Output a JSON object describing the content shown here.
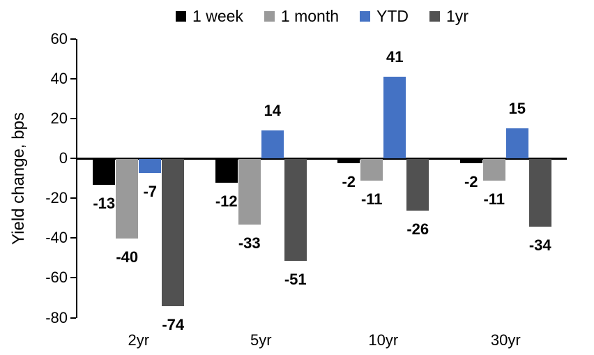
{
  "chart_data": {
    "type": "bar",
    "title": "",
    "xlabel": "",
    "ylabel": "Yield change, bps",
    "categories": [
      "2yr",
      "5yr",
      "10yr",
      "30yr"
    ],
    "series": [
      {
        "name": "1 week",
        "color": "#000000",
        "values": [
          -13,
          -12,
          -2,
          -2
        ]
      },
      {
        "name": "1 month",
        "color": "#9A9A9A",
        "values": [
          -40,
          -33,
          -11,
          -11
        ]
      },
      {
        "name": "YTD",
        "color": "#4472C4",
        "values": [
          -7,
          14,
          41,
          15
        ]
      },
      {
        "name": "1yr",
        "color": "#515151",
        "values": [
          -74,
          -51,
          -26,
          -34
        ]
      }
    ],
    "ylim": [
      -80,
      60
    ],
    "ytick_step": 20,
    "grid": false,
    "legend_position": "top",
    "data_labels": true,
    "colors": {
      "axis": "#000000",
      "text": "#000000",
      "background": "#FFFFFF"
    }
  }
}
